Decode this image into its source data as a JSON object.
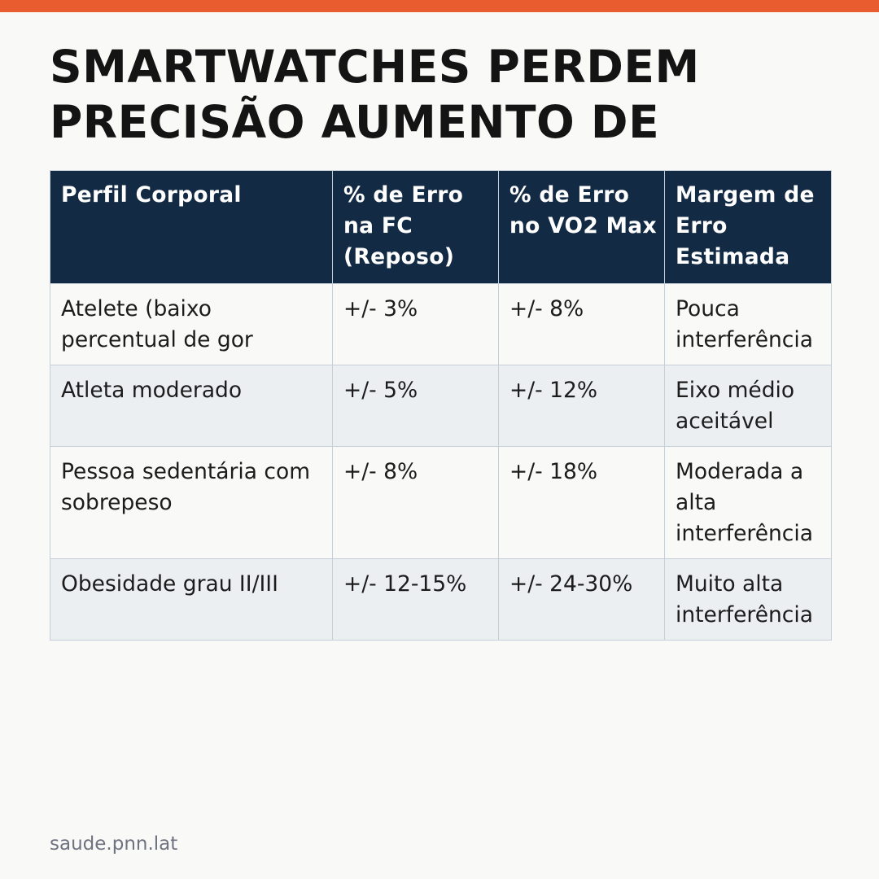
{
  "title": {
    "line1": "SMARTWATCHES PERDEM",
    "line2": "PRECISÃO AUMENTO DE"
  },
  "table": {
    "headers": [
      "Perfil Corporal",
      "% de Erro na FC (Reposo)",
      "% de Erro no VO2 Max",
      "Margem de Erro Estimada"
    ],
    "rows": [
      [
        "Atelete (baixo percentual de gor",
        "+/- 3%",
        "+/- 8%",
        "Pouca interferência"
      ],
      [
        "Atleta moderado",
        "+/- 5%",
        "+/- 12%",
        "Eixo médio aceitável"
      ],
      [
        "Pessoa sedentária com sobrepeso",
        "+/- 8%",
        "+/- 18%",
        "Moderada a alta interferência"
      ],
      [
        "Obesidade grau II/III",
        "+/- 12-15%",
        "+/- 24-30%",
        "Muito alta interferência"
      ]
    ]
  },
  "footer": {
    "source": "saude.pnn.lat"
  },
  "colors": {
    "accent": "#e85c30",
    "header_bg": "#132a44",
    "row_alt_bg": "#ebeff2",
    "page_bg": "#f9f9f7"
  }
}
